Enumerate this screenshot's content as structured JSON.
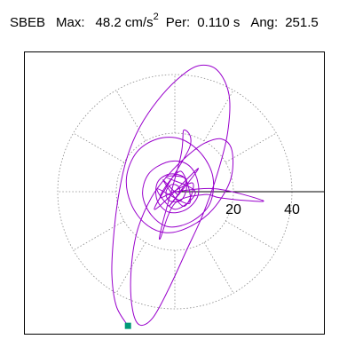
{
  "header": {
    "station": "SBEB",
    "max_label": "Max:",
    "max_value": "48.2",
    "max_unit": "cm/s",
    "max_unit_sup": "2",
    "per_label": "Per:",
    "per_value": "0.110 s",
    "ang_label": "Ang:",
    "ang_value": "251.5"
  },
  "colors": {
    "trace": "#9900cc",
    "end_marker": "#009977",
    "grid": "#888888",
    "frame": "#000000"
  },
  "chart_data": {
    "type": "scatter",
    "description_kind": "polar-particle-motion",
    "title": "SBEB",
    "radial_axis": {
      "range": [
        0,
        50
      ],
      "ring_values": [
        20,
        40
      ],
      "tick_labels": [
        "20",
        "40"
      ],
      "spoke_step_deg": 30,
      "grid": "dotted"
    },
    "cartesian_extent": {
      "x": [
        -40,
        50
      ],
      "y": [
        -48,
        48
      ]
    },
    "end_point": {
      "x": -16.0,
      "y": -45.8
    },
    "trace_points": [
      [
        -16.0,
        -45.8
      ],
      [
        -20.0,
        -39.0
      ],
      [
        -21.5,
        -28.0
      ],
      [
        -20.8,
        -14.0
      ],
      [
        -19.0,
        0.0
      ],
      [
        -16.2,
        12.0
      ],
      [
        -12.0,
        22.0
      ],
      [
        -6.0,
        31.0
      ],
      [
        1.0,
        38.5
      ],
      [
        8.0,
        43.0
      ],
      [
        14.5,
        41.5
      ],
      [
        18.5,
        33.0
      ],
      [
        18.0,
        20.0
      ],
      [
        14.5,
        6.0
      ],
      [
        9.5,
        -8.0
      ],
      [
        4.0,
        -20.0
      ],
      [
        -2.0,
        -33.0
      ],
      [
        -7.5,
        -43.0
      ],
      [
        -12.0,
        -45.5
      ],
      [
        -14.5,
        -40.0
      ],
      [
        -15.0,
        -28.0
      ],
      [
        -13.0,
        -14.0
      ],
      [
        -8.0,
        -2.0
      ],
      [
        -2.0,
        6.0
      ],
      [
        4.0,
        12.0
      ],
      [
        10.0,
        16.5
      ],
      [
        16.0,
        18.0
      ],
      [
        19.5,
        14.0
      ],
      [
        19.0,
        4.0
      ],
      [
        13.0,
        -6.0
      ],
      [
        5.0,
        -12.0
      ],
      [
        -3.0,
        -14.0
      ],
      [
        -10.0,
        -11.0
      ],
      [
        -15.0,
        -4.0
      ],
      [
        -16.5,
        5.0
      ],
      [
        -13.0,
        13.5
      ],
      [
        -6.0,
        18.0
      ],
      [
        2.0,
        18.0
      ],
      [
        9.0,
        13.0
      ],
      [
        13.0,
        5.0
      ],
      [
        12.0,
        -4.0
      ],
      [
        6.0,
        -10.0
      ],
      [
        -2.0,
        -12.0
      ],
      [
        -8.0,
        -8.0
      ],
      [
        -11.0,
        -1.0
      ],
      [
        -9.0,
        6.0
      ],
      [
        -3.0,
        10.0
      ],
      [
        3.0,
        10.0
      ],
      [
        7.0,
        6.0
      ],
      [
        8.0,
        -1.0
      ],
      [
        4.0,
        -6.0
      ],
      [
        -2.0,
        -7.0
      ],
      [
        -6.0,
        -3.0
      ],
      [
        -6.0,
        3.0
      ],
      [
        -2.0,
        6.0
      ],
      [
        3.0,
        5.0
      ],
      [
        4.0,
        1.0
      ],
      [
        2.0,
        -3.0
      ],
      [
        -2.0,
        -3.0
      ],
      [
        -3.0,
        0.0
      ],
      [
        -1.0,
        2.5
      ],
      [
        1.5,
        1.5
      ],
      [
        1.0,
        -1.0
      ],
      [
        -4.0,
        4.0
      ],
      [
        3.0,
        -5.0
      ],
      [
        6.0,
        3.0
      ],
      [
        -5.0,
        -2.0
      ],
      [
        2.0,
        7.0
      ],
      [
        5.0,
        -4.0
      ],
      [
        -6.0,
        1.0
      ],
      [
        0.0,
        -6.0
      ],
      [
        7.0,
        0.0
      ],
      [
        -3.0,
        5.0
      ],
      [
        4.0,
        4.0
      ],
      [
        -2.0,
        -5.0
      ],
      [
        8.0,
        8.0
      ],
      [
        -7.0,
        -6.0
      ],
      [
        5.0,
        15.0
      ],
      [
        3.0,
        21.0
      ],
      [
        2.0,
        12.0
      ],
      [
        -4.0,
        -10.0
      ],
      [
        -5.0,
        -16.0
      ],
      [
        0.0,
        -4.0
      ],
      [
        10.0,
        -1.0
      ],
      [
        15.0,
        -2.0
      ],
      [
        24.0,
        -3.0
      ],
      [
        30.0,
        -3.0
      ],
      [
        14.0,
        1.0
      ],
      [
        0.0,
        0.0
      ]
    ]
  }
}
